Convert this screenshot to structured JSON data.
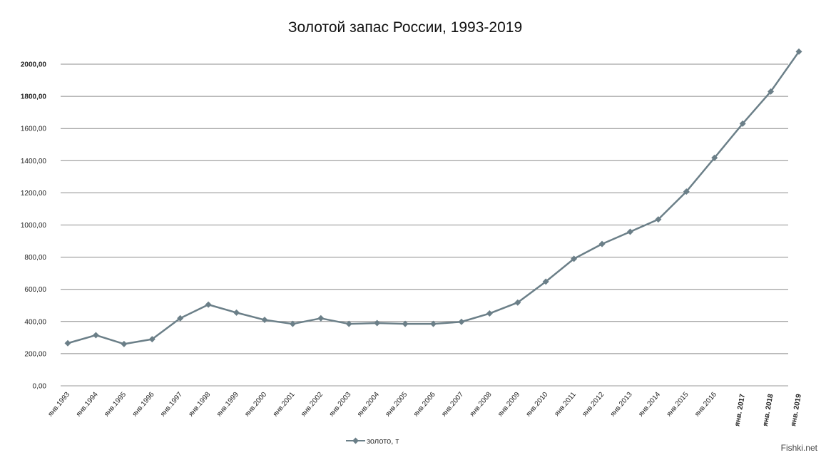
{
  "chart_data": {
    "type": "line",
    "title": "Золотой запас России, 1993-2019",
    "xlabel": "",
    "ylabel": "",
    "ylim": [
      0,
      2000
    ],
    "yticks": [
      "0,00",
      "200,00",
      "400,00",
      "600,00",
      "800,00",
      "1000,00",
      "1200,00",
      "1400,00",
      "1600,00",
      "1800,00",
      "2000,00"
    ],
    "grid": true,
    "legend_position": "bottom",
    "categories": [
      "янв.1993",
      "янв.1994",
      "янв.1995",
      "янв.1996",
      "янв.1997",
      "янв.1998",
      "янв.1999",
      "янв.2000",
      "янв.2001",
      "янв.2002",
      "янв.2003",
      "янв.2004",
      "янв.2005",
      "янв.2006",
      "янв.2007",
      "янв.2008",
      "янв.2009",
      "янв.2010",
      "янв.2011",
      "янв.2012",
      "янв.2013",
      "янв.2014",
      "янв.2015",
      "янв.2016",
      "янв. 2017",
      "янв. 2018",
      "янв. 2019"
    ],
    "series": [
      {
        "name": "золото, т",
        "color": "#6b7f88",
        "values": [
          265,
          315,
          260,
          290,
          420,
          505,
          455,
          410,
          385,
          420,
          385,
          390,
          385,
          385,
          398,
          450,
          518,
          648,
          790,
          882,
          958,
          1035,
          1208,
          1418,
          1630,
          1830,
          2078
        ]
      }
    ]
  },
  "watermark": "Fishki.net"
}
